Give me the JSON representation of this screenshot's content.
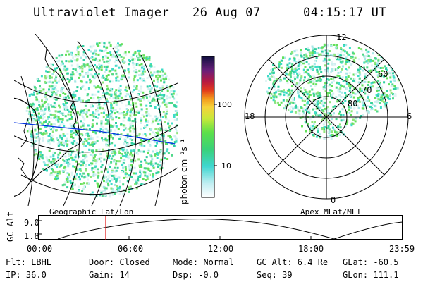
{
  "header": {
    "instrument": "Ultraviolet Imager",
    "date": "26 Aug 07",
    "time": "04:15:17 UT"
  },
  "colorbar": {
    "unit": "photon cm⁻²s⁻¹",
    "ticks": [
      "100",
      "10"
    ]
  },
  "map_labels": {
    "left": "Geographic Lat/Lon",
    "right": "Apex MLat/MLT"
  },
  "polar": {
    "mlt_labels": {
      "top": "12",
      "left": "18",
      "right": "6",
      "bottom": "0"
    },
    "lat_labels": [
      "60",
      "70",
      "80"
    ]
  },
  "altitude_plot": {
    "ylabel": "GC Alt",
    "ymax": "9.0",
    "ymin": "1.8",
    "xticks": [
      "00:00",
      "06:00",
      "12:00",
      "18:00",
      "23:59"
    ]
  },
  "info": {
    "flt": "Flt: LBHL",
    "ip": "IP: 36.0",
    "door": "Door: Closed",
    "gain": "Gain: 14",
    "mode": "Mode: Normal",
    "dsp": "Dsp:    -0.0",
    "gcalt": "GC Alt: 6.4 Re",
    "seq": "Seq: 39",
    "glat": "GLat: -60.5",
    "glon": "GLon: 111.1"
  }
}
